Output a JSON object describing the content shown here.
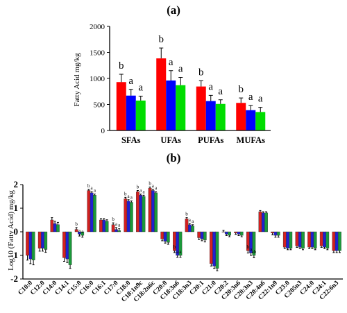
{
  "chart_data": [
    {
      "panel_label": "(a)",
      "type": "bar",
      "ylabel": "Fatty Acid mg/kg",
      "xlabel": "",
      "ylim": [
        0,
        2000
      ],
      "yticks": [
        0,
        500,
        1000,
        1500,
        2000
      ],
      "categories": [
        "SFAs",
        "UFAs",
        "PUFAs",
        "MUFAs"
      ],
      "colors": [
        "#ff0000",
        "#0000ff",
        "#00dd00"
      ],
      "series": [
        {
          "values": [
            930,
            1385,
            845,
            530
          ],
          "errors": [
            150,
            200,
            110,
            95
          ]
        },
        {
          "values": [
            670,
            960,
            565,
            390
          ],
          "errors": [
            120,
            190,
            110,
            90
          ]
        },
        {
          "values": [
            575,
            870,
            510,
            355
          ],
          "errors": [
            85,
            150,
            80,
            90
          ]
        }
      ],
      "significance": [
        [
          "b",
          "a",
          "a"
        ],
        [
          "b",
          "a",
          "a"
        ],
        [
          "b",
          "a",
          "a"
        ],
        [
          "b",
          "a",
          "a"
        ]
      ]
    },
    {
      "panel_label": "(b)",
      "type": "bar",
      "ylabel": "Log10 (Fatty Acid) mg/kg",
      "xlabel": "",
      "ylim": [
        -2,
        2
      ],
      "yticks": [
        -2,
        -1,
        0,
        1,
        2
      ],
      "categories": [
        "C10:0",
        "C12:0",
        "C14:0",
        "C14:1",
        "C15:0",
        "C16:0",
        "C16:1",
        "C17:0",
        "C18:0",
        "C18:1n9c",
        "C18:2n6c",
        "C20:0",
        "C18:3n6",
        "C18:3n3",
        "C20:1",
        "C21:0",
        "C20:2",
        "C20:3n6",
        "C20:3n3",
        "C20:4n6",
        "C22:1n9",
        "C23:0",
        "C205n3",
        "C24:0",
        "C24:1",
        "C22:6n3"
      ],
      "colors": [
        "#d42020",
        "#2020d0",
        "#1a9a3a"
      ],
      "series": [
        {
          "values": [
            -1.0,
            -0.7,
            0.5,
            -1.1,
            0.1,
            1.75,
            0.5,
            0.3,
            1.4,
            1.7,
            1.85,
            -0.3,
            -0.8,
            0.55,
            -0.25,
            -1.35,
            0.0,
            -0.05,
            -0.8,
            0.85,
            -0.05,
            -0.65,
            -0.6,
            -0.65,
            -0.6,
            -0.8
          ],
          "errors": [
            0.2,
            0.12,
            0.1,
            0.15,
            0.08,
            0.05,
            0.06,
            0.08,
            0.06,
            0.05,
            0.05,
            0.08,
            0.08,
            0.05,
            0.08,
            0.1,
            0.06,
            0.06,
            0.1,
            0.05,
            0.08,
            0.06,
            0.06,
            0.06,
            0.06,
            0.08
          ]
        },
        {
          "values": [
            -1.15,
            -0.7,
            0.35,
            -1.15,
            -0.1,
            1.65,
            0.5,
            0.1,
            1.3,
            1.55,
            1.75,
            -0.4,
            -1.0,
            0.3,
            -0.3,
            -1.45,
            -0.1,
            -0.1,
            -0.9,
            0.8,
            -0.15,
            -0.7,
            -0.65,
            -0.65,
            -0.65,
            -0.8
          ],
          "errors": [
            0.2,
            0.12,
            0.1,
            0.15,
            0.08,
            0.05,
            0.06,
            0.08,
            0.06,
            0.05,
            0.05,
            0.08,
            0.08,
            0.05,
            0.08,
            0.1,
            0.06,
            0.06,
            0.1,
            0.05,
            0.08,
            0.06,
            0.06,
            0.06,
            0.06,
            0.08
          ]
        },
        {
          "values": [
            -1.2,
            -0.75,
            0.3,
            -1.4,
            -0.15,
            1.55,
            0.45,
            0.05,
            1.25,
            1.5,
            1.65,
            -0.45,
            -1.0,
            0.25,
            -0.35,
            -1.55,
            -0.15,
            -0.15,
            -1.0,
            0.8,
            -0.15,
            -0.7,
            -0.7,
            -0.7,
            -0.7,
            -0.8
          ],
          "errors": [
            0.2,
            0.12,
            0.1,
            0.15,
            0.08,
            0.05,
            0.06,
            0.08,
            0.06,
            0.05,
            0.05,
            0.08,
            0.08,
            0.05,
            0.08,
            0.1,
            0.06,
            0.06,
            0.1,
            0.05,
            0.08,
            0.06,
            0.06,
            0.06,
            0.06,
            0.08
          ]
        }
      ],
      "significance": [
        null,
        null,
        null,
        null,
        [
          "b",
          "a",
          "a"
        ],
        [
          "b",
          "a",
          "a"
        ],
        null,
        [
          "b",
          "a",
          "a"
        ],
        [
          "b",
          "a",
          "a"
        ],
        [
          "b",
          "a",
          "a"
        ],
        [
          "b",
          "a",
          "a"
        ],
        null,
        [
          "b",
          "a",
          "a"
        ],
        [
          "b",
          "a",
          "a"
        ],
        null,
        null,
        null,
        null,
        [
          "b",
          "a",
          "ab"
        ],
        null,
        null,
        null,
        null,
        null,
        null,
        null
      ]
    }
  ]
}
